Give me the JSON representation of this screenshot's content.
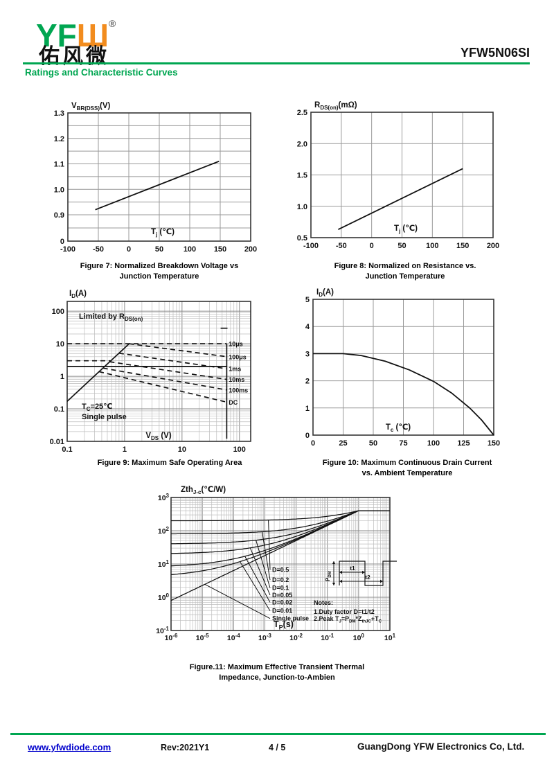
{
  "colors": {
    "green": "#00A651",
    "orange": "#F28C1E",
    "link_blue": "#0000CC"
  },
  "header": {
    "logo_green": "YF",
    "logo_orange": "Ш",
    "registered": "®",
    "logo_chinese": "佑风微",
    "part_number": "YFW5N06SI",
    "section_title": "Ratings and Characteristic Curves"
  },
  "footer": {
    "website": "www.yfwdiode.com",
    "revision": "Rev:2021Y1",
    "page": "4 / 5",
    "company": "GuangDong YFW Electronics Co, Ltd."
  },
  "chart_data": [
    {
      "id": "figure-7",
      "type": "line",
      "caption": [
        "Figure 7: Normalized Breakdown Voltage vs",
        "Junction Temperature"
      ],
      "ylabel": "V_{BR(DSS)}(V)",
      "xlabel": "T_{j} (℃)",
      "xlim": [
        -100,
        200
      ],
      "ylim": [
        0.9,
        1.3
      ],
      "axis_break_at_zero": true,
      "grid": true,
      "x_ticks": [
        "-100",
        "-50",
        "0",
        "50",
        "100",
        "150",
        "200"
      ],
      "y_ticks": [
        "1.3",
        "1.2",
        "1.1",
        "1.0",
        "0.9",
        "0"
      ],
      "series": [
        {
          "name": "normalized-breakdown-voltage",
          "style": "solid",
          "points": [
            [
              -55,
              0.92
            ],
            [
              148,
              1.11
            ]
          ]
        }
      ]
    },
    {
      "id": "figure-8",
      "type": "line",
      "caption": [
        "Figure 8: Normalized on Resistance vs.",
        "Junction Temperature"
      ],
      "ylabel": "R_{DS(on)}(mΩ)",
      "xlabel": "T_{j} (℃)",
      "xlim": [
        -100,
        200
      ],
      "ylim": [
        0.5,
        2.5
      ],
      "grid": true,
      "x_ticks": [
        "-100",
        "-50",
        "0",
        "50",
        "100",
        "150",
        "200"
      ],
      "y_ticks": [
        "2.5",
        "2.0",
        "1.5",
        "1.0",
        "0.5"
      ],
      "series": [
        {
          "name": "normalized-on-resistance",
          "style": "solid",
          "points": [
            [
              -55,
              0.63
            ],
            [
              150,
              1.6
            ]
          ]
        }
      ]
    },
    {
      "id": "figure-9",
      "type": "loglog",
      "caption": [
        "Figure 9: Maximum Safe Operating Area"
      ],
      "ylabel": "I_{D}(A)",
      "xlabel": "V_{DS} (V)",
      "xlim": [
        0.1,
        157
      ],
      "ylim": [
        0.01,
        200
      ],
      "grid": true,
      "x_ticks": [
        "0.1",
        "1",
        "10",
        "100"
      ],
      "y_ticks": [
        "100",
        "10",
        "1",
        "0.1",
        "0.01"
      ],
      "annotations": [
        "Limited by R_{DS(on)}",
        "T_{C}=25℃",
        "Single pulse"
      ],
      "series": [
        {
          "name": "rds-on-limit-line",
          "style": "solid",
          "points": [
            [
              0.1,
              0.17
            ],
            [
              1.2,
              10
            ]
          ]
        },
        {
          "name": "pulse-10us",
          "style": "dashed",
          "label": "10μs",
          "points": [
            [
              0.1,
              10
            ],
            [
              60,
              10
            ]
          ]
        },
        {
          "name": "current-limit-3a",
          "style": "dashed",
          "points": [
            [
              0.1,
              3
            ],
            [
              0.58,
              3
            ]
          ]
        },
        {
          "name": "current-limit-2a",
          "style": "solid",
          "points": [
            [
              0.1,
              2
            ],
            [
              60,
              2
            ]
          ]
        },
        {
          "name": "pulse-100us",
          "style": "dashed",
          "label": "100μs",
          "points": [
            [
              1.2,
              10
            ],
            [
              60,
              4
            ]
          ]
        },
        {
          "name": "pulse-1ms",
          "style": "dashed",
          "label": "1ms",
          "points": [
            [
              0.8,
              5.1
            ],
            [
              60,
              1.7
            ]
          ]
        },
        {
          "name": "pulse-10ms",
          "style": "dashed",
          "label": "10ms",
          "points": [
            [
              0.55,
              2.8
            ],
            [
              60,
              0.8
            ]
          ]
        },
        {
          "name": "pulse-100ms",
          "style": "dashed",
          "label": "100ms",
          "points": [
            [
              0.42,
              1.78
            ],
            [
              60,
              0.38
            ]
          ]
        },
        {
          "name": "dc",
          "style": "dashed",
          "label": "DC",
          "points": [
            [
              0.36,
              1.39
            ],
            [
              60,
              0.16
            ]
          ]
        },
        {
          "name": "voltage-limit-line",
          "style": "solid",
          "points": [
            [
              60,
              10
            ],
            [
              60,
              0.012
            ]
          ]
        },
        {
          "name": "step-segment",
          "style": "solid",
          "points": [
            [
              47,
              30
            ],
            [
              62,
              30
            ]
          ]
        }
      ]
    },
    {
      "id": "figure-10",
      "type": "line",
      "caption": [
        "Figure 10: Maximum Continuous Drain Current",
        "vs. Ambient Temperature"
      ],
      "ylabel": "I_{D}(A)",
      "xlabel": "T_{c} (℃)",
      "xlim": [
        0,
        150
      ],
      "ylim": [
        0,
        5
      ],
      "grid": true,
      "x_ticks": [
        "0",
        "25",
        "50",
        "75",
        "100",
        "125",
        "150"
      ],
      "y_ticks": [
        "5",
        "4",
        "3",
        "2",
        "1",
        "0"
      ],
      "series": [
        {
          "name": "id-vs-tc",
          "style": "solid",
          "points": [
            [
              0,
              3
            ],
            [
              25,
              3
            ],
            [
              40,
              2.93
            ],
            [
              60,
              2.72
            ],
            [
              80,
              2.4
            ],
            [
              100,
              1.98
            ],
            [
              115,
              1.55
            ],
            [
              130,
              1.0
            ],
            [
              140,
              0.55
            ],
            [
              150,
              0
            ]
          ]
        }
      ]
    },
    {
      "id": "figure-11",
      "type": "loglog",
      "caption": [
        "Figure.11: Maximum Effective Transient Thermal",
        "Impedance, Junction-to-Ambien"
      ],
      "ylabel": "Zth_{J-c}(℃/W)",
      "xlabel": "T_{P}(s)",
      "xlim": [
        1e-06,
        10
      ],
      "ylim": [
        0.1,
        1000
      ],
      "grid": true,
      "x_ticks": [
        "10^{-6}",
        "10^{-5}",
        "10^{-4}",
        "10^{-3}",
        "10^{-2}",
        "10^{-1}",
        "10^{0}",
        "10^{1}"
      ],
      "y_ticks": [
        "10^{-1}",
        "10^{0}",
        "10^{1}",
        "10^{2}",
        "10^{3}"
      ],
      "rth": 400,
      "single_pulse": {
        "ref_x": 1e-06,
        "ref_y": 0.8,
        "slope": 0.45
      },
      "duty_cycles": [
        0.5,
        0.2,
        0.1,
        0.05,
        0.02,
        0.01
      ],
      "curve_labels": [
        "D=0.5",
        "D=0.2",
        "D=0.1",
        "D=0.05",
        "D=0.02",
        "D=0.01",
        "Single pulse"
      ],
      "notes": [
        "Notes:",
        "1.Duty factor D=t1/t2",
        "2.Peak T_{J}=P_{DM}*Z_{thJC}+T_{C}"
      ],
      "inset_labels": {
        "pdm": "P_{DM}",
        "t1": "t1",
        "t2": "t2"
      }
    }
  ]
}
